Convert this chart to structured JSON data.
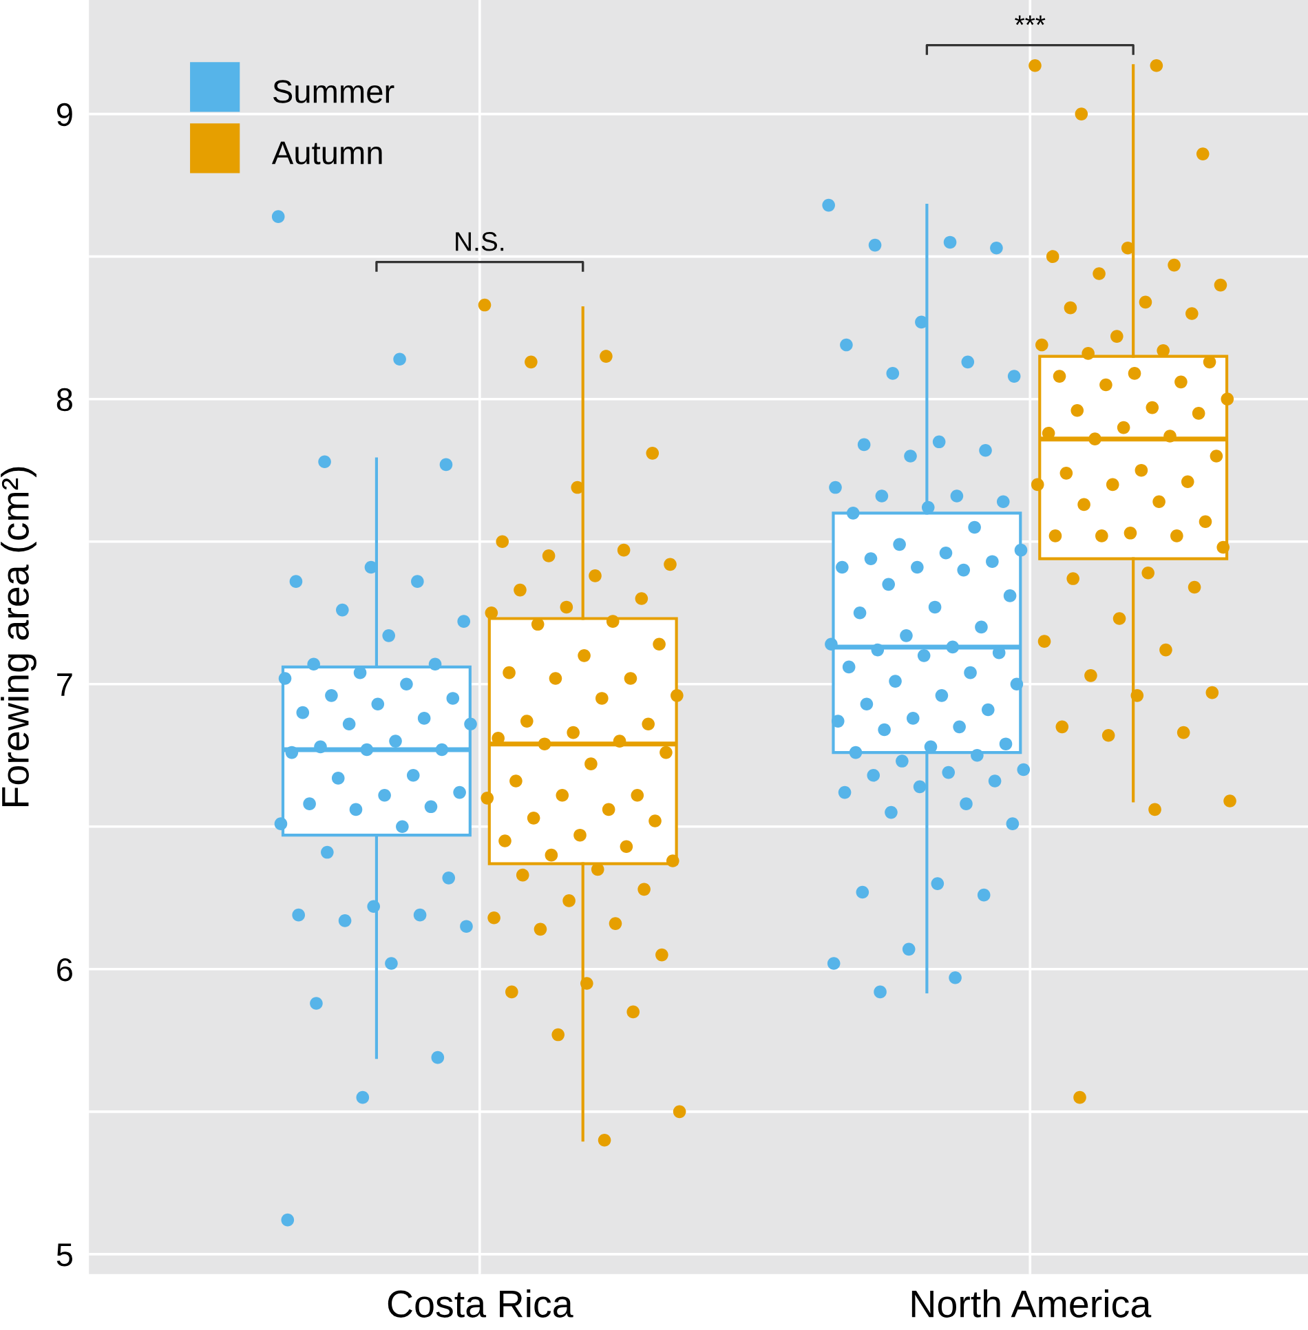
{
  "chart_data": {
    "type": "box",
    "ylabel": "Forewing area (cm²)",
    "categories": [
      "Costa Rica",
      "North America"
    ],
    "ylim": [
      4.93,
      9.4
    ],
    "yticks": [
      5,
      {
        "value": 5.5,
        "label": null
      },
      6,
      {
        "value": 6.5,
        "label": null
      },
      7,
      {
        "value": 7.5,
        "label": null
      },
      8,
      {
        "value": 8.5,
        "label": null
      },
      9
    ],
    "grid": true,
    "legend": "top left",
    "annotations": [
      "N.S.",
      "***"
    ],
    "series": [
      {
        "color": "#56b4e9",
        "boxes": [
          {
            "low": 5.69,
            "q1": 6.47,
            "median": 6.77,
            "q3": 7.06,
            "high": 7.79
          },
          {
            "low": 5.92,
            "q1": 6.76,
            "median": 7.13,
            "q3": 7.6,
            "high": 8.68
          }
        ]
      },
      {
        "color": "#e69f00",
        "boxes": [
          {
            "low": 5.4,
            "q1": 6.37,
            "median": 6.79,
            "q3": 7.23,
            "high": 8.32
          },
          {
            "low": 6.59,
            "q1": 7.44,
            "median": 7.86,
            "q3": 8.15,
            "high": 9.17
          }
        ]
      },
      {
        "type": "scatter",
        "name": "Summer",
        "color": "#56b4e9",
        "x": [
          "Costa Rica",
          "Costa Rica",
          "Costa Rica",
          "Costa Rica",
          "Costa Rica",
          "Costa Rica",
          "Costa Rica",
          "Costa Rica",
          "Costa Rica",
          "Costa Rica",
          "Costa Rica",
          "Costa Rica",
          "Costa Rica",
          "Costa Rica",
          "Costa Rica",
          "Costa Rica",
          "Costa Rica",
          "Costa Rica",
          "Costa Rica",
          "Costa Rica",
          "Costa Rica",
          "Costa Rica",
          "Costa Rica",
          "Costa Rica",
          "Costa Rica",
          "Costa Rica",
          "Costa Rica",
          "Costa Rica",
          "Costa Rica",
          "Costa Rica",
          "Costa Rica",
          "Costa Rica",
          "Costa Rica",
          "Costa Rica",
          "Costa Rica",
          "Costa Rica",
          "Costa Rica",
          "Costa Rica",
          "Costa Rica",
          "Costa Rica",
          "Costa Rica",
          "Costa Rica",
          "Costa Rica",
          "Costa Rica",
          "Costa Rica",
          "Costa Rica",
          "Costa Rica",
          "Costa Rica",
          "North America",
          "North America",
          "North America",
          "North America",
          "North America",
          "North America",
          "North America",
          "North America",
          "North America",
          "North America",
          "North America",
          "North America",
          "North America",
          "North America",
          "North America",
          "North America",
          "North America",
          "North America",
          "North America",
          "North America",
          "North America",
          "North America",
          "North America",
          "North America",
          "North America",
          "North America",
          "North America",
          "North America",
          "North America",
          "North America",
          "North America",
          "North America",
          "North America",
          "North America",
          "North America",
          "North America",
          "North America",
          "North America",
          "North America",
          "North America",
          "North America",
          "North America",
          "North America",
          "North America",
          "North America",
          "North America",
          "North America",
          "North America",
          "North America",
          "North America",
          "North America",
          "North America",
          "North America",
          "North America",
          "North America",
          "North America",
          "North America",
          "North America",
          "North America",
          "North America",
          "North America",
          "North America",
          "North America",
          "North America",
          "North America",
          "North America",
          "North America",
          "North America",
          "North America",
          "North America",
          "North America"
        ],
        "values": [
          8.64,
          8.14,
          7.78,
          7.77,
          7.41,
          7.36,
          7.36,
          7.26,
          7.22,
          7.17,
          7.07,
          7.07,
          7.04,
          7.02,
          7.0,
          6.96,
          6.95,
          6.93,
          6.9,
          6.88,
          6.86,
          6.86,
          6.8,
          6.78,
          6.77,
          6.77,
          6.76,
          6.68,
          6.67,
          6.62,
          6.61,
          6.58,
          6.57,
          6.56,
          6.51,
          6.5,
          6.41,
          6.32,
          6.22,
          6.19,
          6.19,
          6.17,
          6.15,
          6.02,
          5.88,
          5.69,
          5.55,
          5.12,
          8.68,
          8.55,
          8.54,
          8.53,
          8.27,
          8.19,
          8.13,
          8.09,
          8.08,
          7.85,
          7.84,
          7.82,
          7.8,
          7.69,
          7.66,
          7.66,
          7.64,
          7.62,
          7.6,
          7.55,
          7.49,
          7.47,
          7.46,
          7.44,
          7.43,
          7.41,
          7.41,
          7.4,
          7.35,
          7.31,
          7.27,
          7.25,
          7.2,
          7.17,
          7.14,
          7.13,
          7.12,
          7.11,
          7.1,
          7.06,
          7.04,
          7.01,
          7.0,
          6.96,
          6.93,
          6.91,
          6.88,
          6.87,
          6.85,
          6.84,
          6.79,
          6.78,
          6.76,
          6.75,
          6.73,
          6.7,
          6.69,
          6.68,
          6.66,
          6.64,
          6.62,
          6.58,
          6.55,
          6.51,
          6.3,
          6.27,
          6.26,
          6.07,
          6.02,
          5.97,
          5.92
        ]
      },
      {
        "type": "scatter",
        "name": "Autumn",
        "color": "#e69f00",
        "x": [
          "Costa Rica",
          "Costa Rica",
          "Costa Rica",
          "Costa Rica",
          "Costa Rica",
          "Costa Rica",
          "Costa Rica",
          "Costa Rica",
          "Costa Rica",
          "Costa Rica",
          "Costa Rica",
          "Costa Rica",
          "Costa Rica",
          "Costa Rica",
          "Costa Rica",
          "Costa Rica",
          "Costa Rica",
          "Costa Rica",
          "Costa Rica",
          "Costa Rica",
          "Costa Rica",
          "Costa Rica",
          "Costa Rica",
          "Costa Rica",
          "Costa Rica",
          "Costa Rica",
          "Costa Rica",
          "Costa Rica",
          "Costa Rica",
          "Costa Rica",
          "Costa Rica",
          "Costa Rica",
          "Costa Rica",
          "Costa Rica",
          "Costa Rica",
          "Costa Rica",
          "Costa Rica",
          "Costa Rica",
          "Costa Rica",
          "Costa Rica",
          "Costa Rica",
          "Costa Rica",
          "Costa Rica",
          "Costa Rica",
          "Costa Rica",
          "Costa Rica",
          "Costa Rica",
          "Costa Rica",
          "Costa Rica",
          "Costa Rica",
          "Costa Rica",
          "Costa Rica",
          "Costa Rica",
          "Costa Rica",
          "Costa Rica",
          "Costa Rica",
          "Costa Rica",
          "North America",
          "North America",
          "North America",
          "North America",
          "North America",
          "North America",
          "North America",
          "North America",
          "North America",
          "North America",
          "North America",
          "North America",
          "North America",
          "North America",
          "North America",
          "North America",
          "North America",
          "North America",
          "North America",
          "North America",
          "North America",
          "North America",
          "North America",
          "North America",
          "North America",
          "North America",
          "North America",
          "North America",
          "North America",
          "North America",
          "North America",
          "North America",
          "North America",
          "North America",
          "North America",
          "North America",
          "North America",
          "North America",
          "North America",
          "North America",
          "North America",
          "North America",
          "North America",
          "North America",
          "North America",
          "North America",
          "North America",
          "North America",
          "North America",
          "North America",
          "North America",
          "North America",
          "North America",
          "North America",
          "North America",
          "North America",
          "North America",
          "North America"
        ],
        "values": [
          8.33,
          8.15,
          8.13,
          7.81,
          7.69,
          7.5,
          7.47,
          7.45,
          7.42,
          7.38,
          7.33,
          7.3,
          7.27,
          7.25,
          7.22,
          7.21,
          7.14,
          7.1,
          7.04,
          7.02,
          7.02,
          6.96,
          6.95,
          6.87,
          6.86,
          6.83,
          6.81,
          6.8,
          6.79,
          6.76,
          6.72,
          6.66,
          6.61,
          6.61,
          6.6,
          6.56,
          6.53,
          6.52,
          6.47,
          6.45,
          6.43,
          6.4,
          6.38,
          6.35,
          6.33,
          6.28,
          6.24,
          6.18,
          6.16,
          6.14,
          6.05,
          5.95,
          5.92,
          5.85,
          5.77,
          5.5,
          5.4,
          9.17,
          9.17,
          9.0,
          8.86,
          8.53,
          8.5,
          8.47,
          8.44,
          8.4,
          8.34,
          8.32,
          8.3,
          8.22,
          8.19,
          8.17,
          8.16,
          8.13,
          8.09,
          8.08,
          8.06,
          8.05,
          8.0,
          7.97,
          7.96,
          7.95,
          7.9,
          7.88,
          7.87,
          7.86,
          7.8,
          7.75,
          7.74,
          7.71,
          7.7,
          7.7,
          7.64,
          7.63,
          7.57,
          7.53,
          7.52,
          7.52,
          7.52,
          7.48,
          7.39,
          7.37,
          7.34,
          7.23,
          7.15,
          7.12,
          7.03,
          6.97,
          6.96,
          6.85,
          6.83,
          6.82,
          6.59,
          6.56,
          5.55
        ]
      }
    ]
  }
}
